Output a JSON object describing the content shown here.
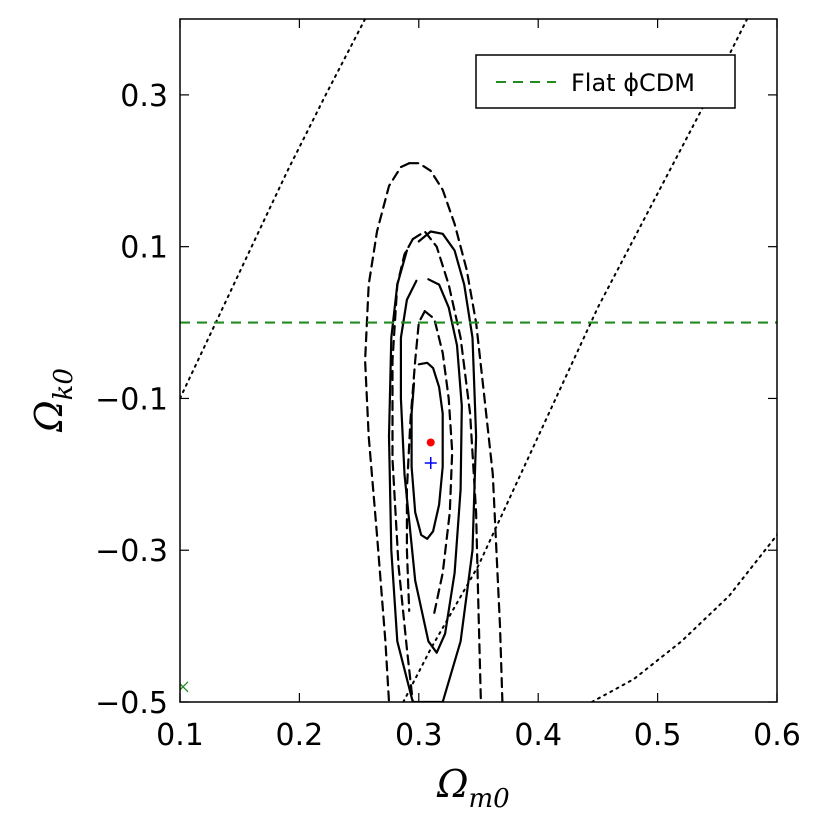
{
  "chart_data": {
    "type": "line",
    "xlabel": "Ω",
    "xlabel_sub": "m0",
    "ylabel": "Ω",
    "ylabel_sub": "k0",
    "xlim": [
      0.1,
      0.6
    ],
    "ylim": [
      -0.5,
      0.4
    ],
    "xticks": [
      0.1,
      0.2,
      0.3,
      0.4,
      0.5,
      0.6
    ],
    "xtick_labels": [
      "0.1",
      "0.2",
      "0.3",
      "0.4",
      "0.5",
      "0.6"
    ],
    "yticks": [
      0.3,
      0.1,
      -0.1,
      -0.3,
      -0.5
    ],
    "ytick_labels": [
      "0.3",
      "0.1",
      "−0.1",
      "−0.3",
      "−0.5"
    ],
    "grid": false,
    "legend": {
      "position": "top-right",
      "entries": [
        {
          "label": "Flat ϕCDM",
          "style": "dashed",
          "color": "#228b22"
        }
      ]
    },
    "colors": {
      "flat_line": "#228b22",
      "best_fit_dot": "#ff0000",
      "best_fit_plus": "#0000ff",
      "contours": "#000000",
      "x_marker": "#228b22"
    },
    "series": [
      {
        "style": "solid",
        "contours": [
          [
            [
              0.3,
              -0.055
            ],
            [
              0.307,
              -0.053
            ],
            [
              0.312,
              -0.06
            ],
            [
              0.317,
              -0.085
            ],
            [
              0.32,
              -0.12
            ],
            [
              0.32,
              -0.19
            ],
            [
              0.317,
              -0.24
            ],
            [
              0.312,
              -0.275
            ],
            [
              0.307,
              -0.285
            ],
            [
              0.302,
              -0.28
            ],
            [
              0.297,
              -0.25
            ],
            [
              0.294,
              -0.19
            ],
            [
              0.294,
              -0.12
            ],
            [
              0.296,
              -0.08
            ]
          ],
          [
            [
              0.308,
              0.057
            ],
            [
              0.317,
              0.05
            ],
            [
              0.325,
              0.02
            ],
            [
              0.332,
              -0.03
            ],
            [
              0.336,
              -0.11
            ],
            [
              0.335,
              -0.22
            ],
            [
              0.33,
              -0.33
            ],
            [
              0.322,
              -0.41
            ],
            [
              0.315,
              -0.435
            ],
            [
              0.308,
              -0.42
            ],
            [
              0.297,
              -0.34
            ],
            [
              0.288,
              -0.2
            ],
            [
              0.285,
              -0.1
            ],
            [
              0.285,
              -0.02
            ],
            [
              0.29,
              0.03
            ],
            [
              0.298,
              0.055
            ]
          ],
          [
            [
              0.3,
              0.107
            ],
            [
              0.31,
              0.12
            ],
            [
              0.32,
              0.117
            ],
            [
              0.33,
              0.095
            ],
            [
              0.338,
              0.05
            ],
            [
              0.345,
              -0.02
            ],
            [
              0.348,
              -0.15
            ],
            [
              0.345,
              -0.3
            ],
            [
              0.335,
              -0.42
            ],
            [
              0.32,
              -0.5
            ],
            [
              0.295,
              -0.5
            ],
            [
              0.282,
              -0.42
            ],
            [
              0.277,
              -0.3
            ],
            [
              0.275,
              -0.15
            ],
            [
              0.277,
              -0.02
            ],
            [
              0.282,
              0.05
            ],
            [
              0.29,
              0.095
            ]
          ]
        ]
      },
      {
        "style": "dashed",
        "contours": [
          [
            [
              0.292,
              0.21
            ],
            [
              0.3,
              0.21
            ],
            [
              0.31,
              0.2
            ],
            [
              0.32,
              0.175
            ],
            [
              0.33,
              0.13
            ],
            [
              0.34,
              0.07
            ],
            [
              0.348,
              0.0
            ],
            [
              0.355,
              -0.1
            ],
            [
              0.362,
              -0.2
            ],
            [
              0.365,
              -0.3
            ],
            [
              0.368,
              -0.4
            ],
            [
              0.37,
              -0.5
            ]
          ],
          [
            [
              0.292,
              0.21
            ],
            [
              0.285,
              0.205
            ],
            [
              0.275,
              0.18
            ],
            [
              0.265,
              0.12
            ],
            [
              0.258,
              0.05
            ],
            [
              0.255,
              -0.05
            ],
            [
              0.258,
              -0.15
            ],
            [
              0.265,
              -0.28
            ],
            [
              0.272,
              -0.42
            ],
            [
              0.275,
              -0.5
            ]
          ],
          [
            [
              0.295,
              0.11
            ],
            [
              0.305,
              0.12
            ],
            [
              0.315,
              0.1
            ],
            [
              0.325,
              0.05
            ],
            [
              0.335,
              -0.02
            ],
            [
              0.343,
              -0.12
            ],
            [
              0.348,
              -0.25
            ],
            [
              0.35,
              -0.38
            ],
            [
              0.352,
              -0.5
            ]
          ],
          [
            [
              0.295,
              0.11
            ],
            [
              0.288,
              0.09
            ],
            [
              0.282,
              0.05
            ],
            [
              0.278,
              -0.05
            ],
            [
              0.278,
              -0.18
            ],
            [
              0.283,
              -0.32
            ],
            [
              0.29,
              -0.43
            ],
            [
              0.295,
              -0.5
            ]
          ],
          [
            [
              0.305,
              0.015
            ],
            [
              0.313,
              0.005
            ],
            [
              0.32,
              -0.04
            ],
            [
              0.325,
              -0.1
            ],
            [
              0.328,
              -0.17
            ],
            [
              0.326,
              -0.25
            ],
            [
              0.32,
              -0.33
            ],
            [
              0.312,
              -0.39
            ]
          ],
          [
            [
              0.305,
              0.015
            ],
            [
              0.3,
              0.0
            ],
            [
              0.297,
              -0.05
            ],
            [
              0.293,
              -0.13
            ],
            [
              0.29,
              -0.22
            ],
            [
              0.29,
              -0.3
            ],
            [
              0.292,
              -0.38
            ]
          ]
        ]
      },
      {
        "style": "dotted",
        "contours": [
          [
            [
              0.1,
              -0.1
            ],
            [
              0.13,
              0.0
            ],
            [
              0.16,
              0.1
            ],
            [
              0.19,
              0.2
            ],
            [
              0.222,
              0.3
            ],
            [
              0.255,
              0.4
            ]
          ],
          [
            [
              0.287,
              -0.5
            ],
            [
              0.31,
              -0.43
            ],
            [
              0.35,
              -0.32
            ],
            [
              0.4,
              -0.15
            ],
            [
              0.45,
              0.02
            ],
            [
              0.5,
              0.17
            ],
            [
              0.54,
              0.29
            ],
            [
              0.575,
              0.4
            ]
          ],
          [
            [
              0.445,
              -0.5
            ],
            [
              0.48,
              -0.47
            ],
            [
              0.52,
              -0.42
            ],
            [
              0.56,
              -0.36
            ],
            [
              0.6,
              -0.28
            ],
            [
              0.62,
              -0.2
            ]
          ]
        ]
      }
    ],
    "flat_line_y": 0.0,
    "best_fit": {
      "x": 0.31,
      "y": -0.158
    },
    "plus_marker": {
      "x": 0.31,
      "y": -0.185
    },
    "x_marker": {
      "x": 0.1,
      "y": -0.48
    }
  }
}
